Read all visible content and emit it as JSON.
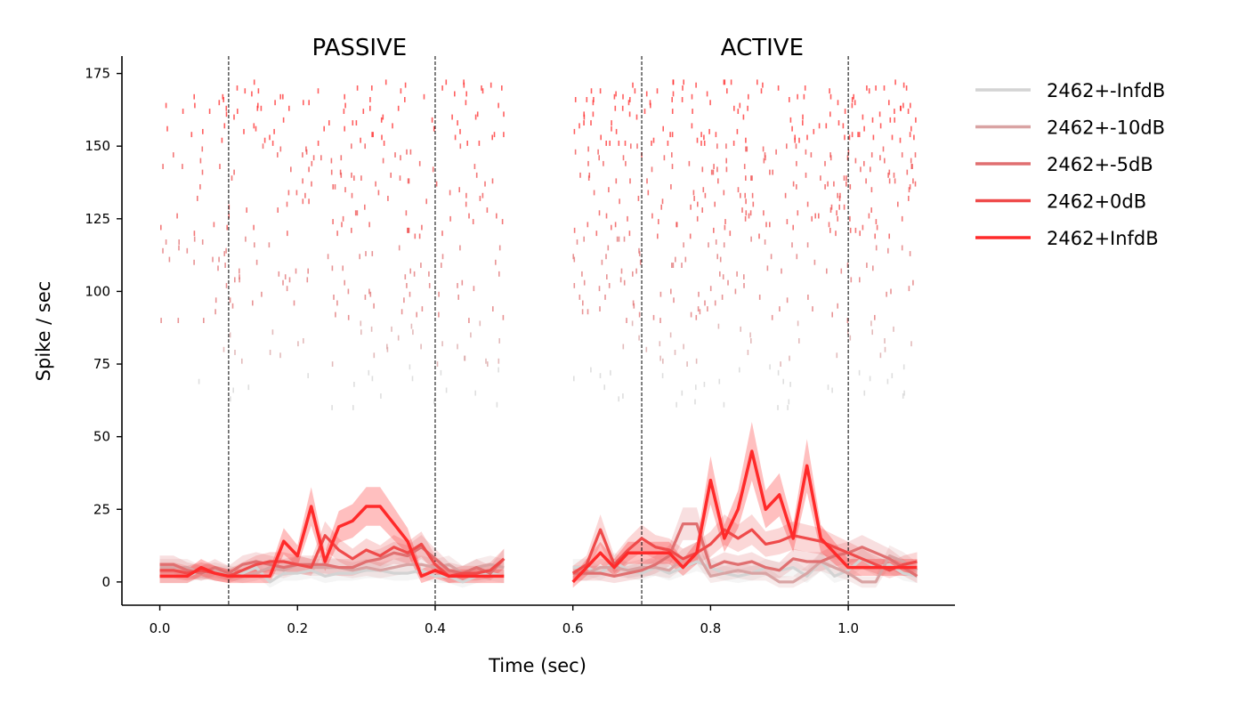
{
  "chart_data": {
    "type": "line",
    "xlabel": "Time (sec)",
    "ylabel": "Spike / sec",
    "xlim": [
      -0.055,
      1.155
    ],
    "ylim": [
      -8,
      181
    ],
    "x_ticks": [
      0.0,
      0.2,
      0.4,
      0.6,
      0.8,
      1.0
    ],
    "x_tick_labels": [
      "0.0",
      "0.2",
      "0.4",
      "0.6",
      "0.8",
      "1.0"
    ],
    "y_ticks": [
      0,
      25,
      50,
      75,
      100,
      125,
      150,
      175
    ],
    "y_tick_labels": [
      "0",
      "25",
      "50",
      "75",
      "100",
      "125",
      "150",
      "175"
    ],
    "grid": false,
    "legend_position": "outside-right",
    "vlines": [
      0.1,
      0.4,
      0.7,
      1.0
    ],
    "panels": [
      {
        "title": "PASSIVE",
        "x_start": 0.0,
        "x_end": 0.5,
        "title_x": 0.29
      },
      {
        "title": "ACTIVE",
        "x_start": 0.6,
        "x_end": 1.1,
        "title_x": 0.875
      }
    ],
    "series": [
      {
        "name": "2462+-InfdB",
        "color": "#d3d3d3",
        "raster_rows": [
          60,
          74
        ],
        "passive": [
          2,
          2,
          2,
          4,
          3,
          3,
          3,
          5,
          0,
          3,
          3,
          4,
          2,
          3,
          3,
          4,
          4,
          3,
          3,
          4,
          2,
          2,
          0,
          2,
          3,
          2
        ],
        "active": [
          5,
          5,
          3,
          7,
          4,
          3,
          5,
          3,
          5,
          7,
          5,
          3,
          2,
          3,
          5,
          4,
          5,
          2,
          7,
          2,
          4,
          8,
          5,
          6,
          3,
          2
        ]
      },
      {
        "name": "2462+-10dB",
        "color": "#d9a3a3",
        "raster_rows": [
          75,
          89
        ],
        "passive": [
          5,
          5,
          5,
          3,
          4,
          3,
          2,
          3,
          5,
          4,
          6,
          5,
          5,
          5,
          4,
          5,
          4,
          5,
          6,
          6,
          5,
          6,
          3,
          5,
          6,
          5
        ],
        "active": [
          3,
          3,
          5,
          5,
          4,
          5,
          5,
          4,
          8,
          10,
          2,
          3,
          4,
          3,
          3,
          0,
          0,
          3,
          7,
          5,
          3,
          0,
          0,
          9,
          7,
          4
        ]
      },
      {
        "name": "2462+-5dB",
        "color": "#e06f70",
        "raster_rows": [
          90,
          118
        ],
        "passive": [
          6,
          6,
          4,
          3,
          5,
          3,
          6,
          7,
          6,
          5,
          6,
          6,
          6,
          5,
          5,
          7,
          8,
          10,
          9,
          12,
          8,
          4,
          3,
          5,
          3,
          8
        ],
        "active": [
          3,
          3,
          3,
          2,
          3,
          4,
          6,
          9,
          20,
          20,
          5,
          7,
          6,
          7,
          5,
          4,
          8,
          7,
          7,
          9,
          10,
          12,
          10,
          8,
          5,
          2
        ]
      },
      {
        "name": "2462+0dB",
        "color": "#ef4a4a",
        "raster_rows": [
          119,
          150
        ],
        "passive": [
          4,
          4,
          3,
          4,
          3,
          2,
          4,
          6,
          7,
          7,
          6,
          5,
          16,
          11,
          8,
          11,
          9,
          12,
          10,
          13,
          6,
          2,
          3,
          3,
          4,
          8
        ],
        "active": [
          3,
          6,
          18,
          6,
          11,
          15,
          12,
          11,
          8,
          10,
          13,
          18,
          15,
          18,
          13,
          14,
          16,
          15,
          14,
          12,
          10,
          8,
          6,
          4,
          6,
          7
        ]
      },
      {
        "name": "2462+InfdB",
        "color": "#ff2a2a",
        "raster_rows": [
          151,
          172
        ],
        "passive": [
          2,
          2,
          2,
          5,
          3,
          2,
          2,
          2,
          2,
          14,
          9,
          26,
          7,
          19,
          21,
          26,
          26,
          20,
          14,
          2,
          4,
          2,
          2,
          2,
          2,
          2
        ],
        "active": [
          0,
          5,
          10,
          5,
          10,
          10,
          10,
          10,
          5,
          10,
          35,
          15,
          25,
          45,
          25,
          30,
          15,
          40,
          15,
          10,
          5,
          5,
          5,
          5,
          5,
          5
        ]
      }
    ]
  }
}
